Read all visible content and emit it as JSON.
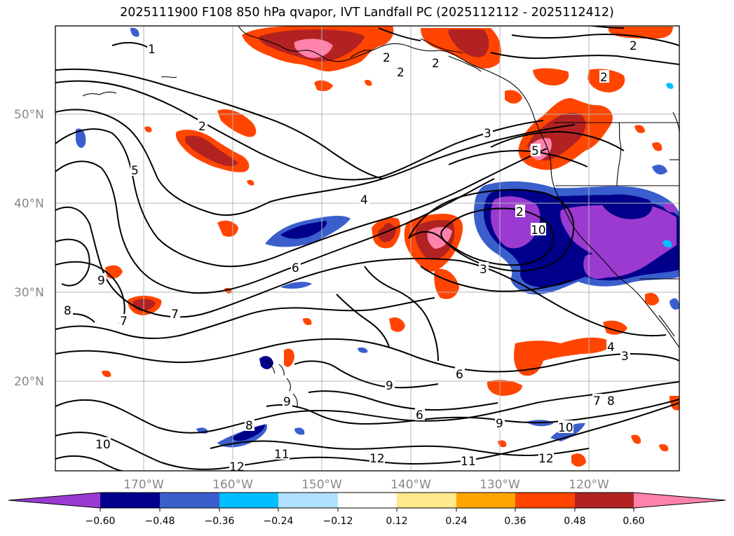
{
  "title": "2025111900 F108 850 hPa qvapor, IVT Landfall PC (2025112112 - 2025112412)",
  "lat_labels": [
    "50°N",
    "40°N",
    "30°N",
    "20°N"
  ],
  "lon_labels": [
    "170°W",
    "160°W",
    "150°W",
    "140°W",
    "130°W",
    "120°W"
  ],
  "colorbar": {
    "ticks": [
      "−0.60",
      "−0.48",
      "−0.36",
      "−0.24",
      "−0.12",
      "0.12",
      "0.24",
      "0.36",
      "0.48",
      "0.60"
    ],
    "colors": [
      "#9a3ad0",
      "#00008b",
      "#3a5fcd",
      "#00bfff",
      "#b0e0ff",
      "#ffffff",
      "#ffe98a",
      "#ffa500",
      "#ff4500",
      "#b22222",
      "#ff82ab"
    ]
  },
  "contour_labels": {
    "a": "2",
    "b": "2",
    "c": "2",
    "d": "2",
    "e": "3",
    "f": "5",
    "g": "4",
    "h": "3",
    "i": "6",
    "j": "7",
    "k": "8",
    "l": "9",
    "m": "2",
    "n": "10",
    "o": "9",
    "p": "6",
    "q": "6",
    "r": "9",
    "s": "8",
    "t": "10",
    "u": "11",
    "v": "12",
    "w": "12",
    "x": "11",
    "y": "12",
    "z": "10",
    "aa": "7",
    "ab": "8",
    "ac": "4",
    "ad": "3",
    "ae": "9",
    "af": "7",
    "ag": "5",
    "ah": "1",
    "ai": "2",
    "aj": "2"
  },
  "map": {
    "field": "850 hPa qvapor",
    "overlay": "IVT Landfall PC",
    "lat_range": [
      10,
      60
    ],
    "lon_range": [
      -180,
      -110
    ],
    "gridlines": true
  }
}
